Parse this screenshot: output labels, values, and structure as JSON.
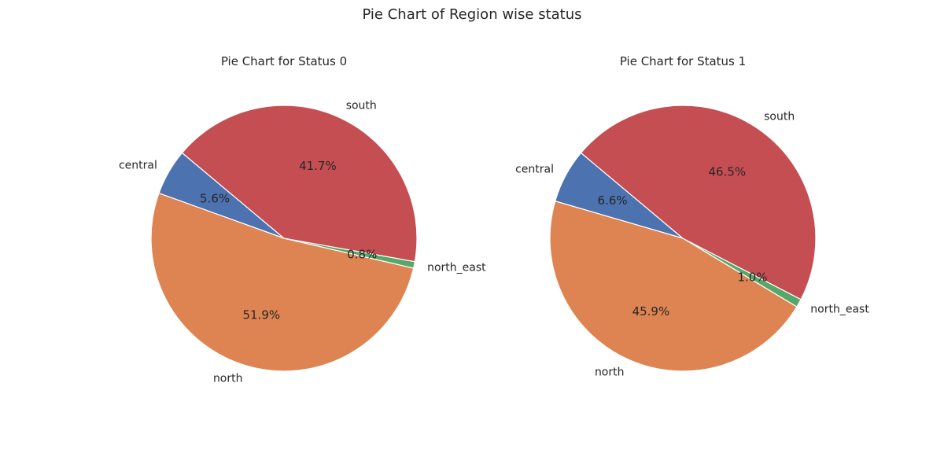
{
  "suptitle": "Pie Chart of Region wise status",
  "chart_data": [
    {
      "type": "pie",
      "title": "Pie Chart for Status 0",
      "categories": [
        "central",
        "north",
        "north_east",
        "south"
      ],
      "values": [
        5.6,
        51.9,
        0.8,
        41.7
      ],
      "value_labels": [
        "5.6%",
        "51.9%",
        "0.8%",
        "41.7%"
      ],
      "colors": [
        "#4c72b0",
        "#dd8452",
        "#55a868",
        "#c44e52"
      ]
    },
    {
      "type": "pie",
      "title": "Pie Chart for Status 1",
      "categories": [
        "central",
        "north",
        "north_east",
        "south"
      ],
      "values": [
        6.6,
        45.9,
        1.0,
        46.5
      ],
      "value_labels": [
        "6.6%",
        "45.9%",
        "1.0%",
        "46.5%"
      ],
      "colors": [
        "#4c72b0",
        "#dd8452",
        "#55a868",
        "#c44e52"
      ]
    }
  ]
}
